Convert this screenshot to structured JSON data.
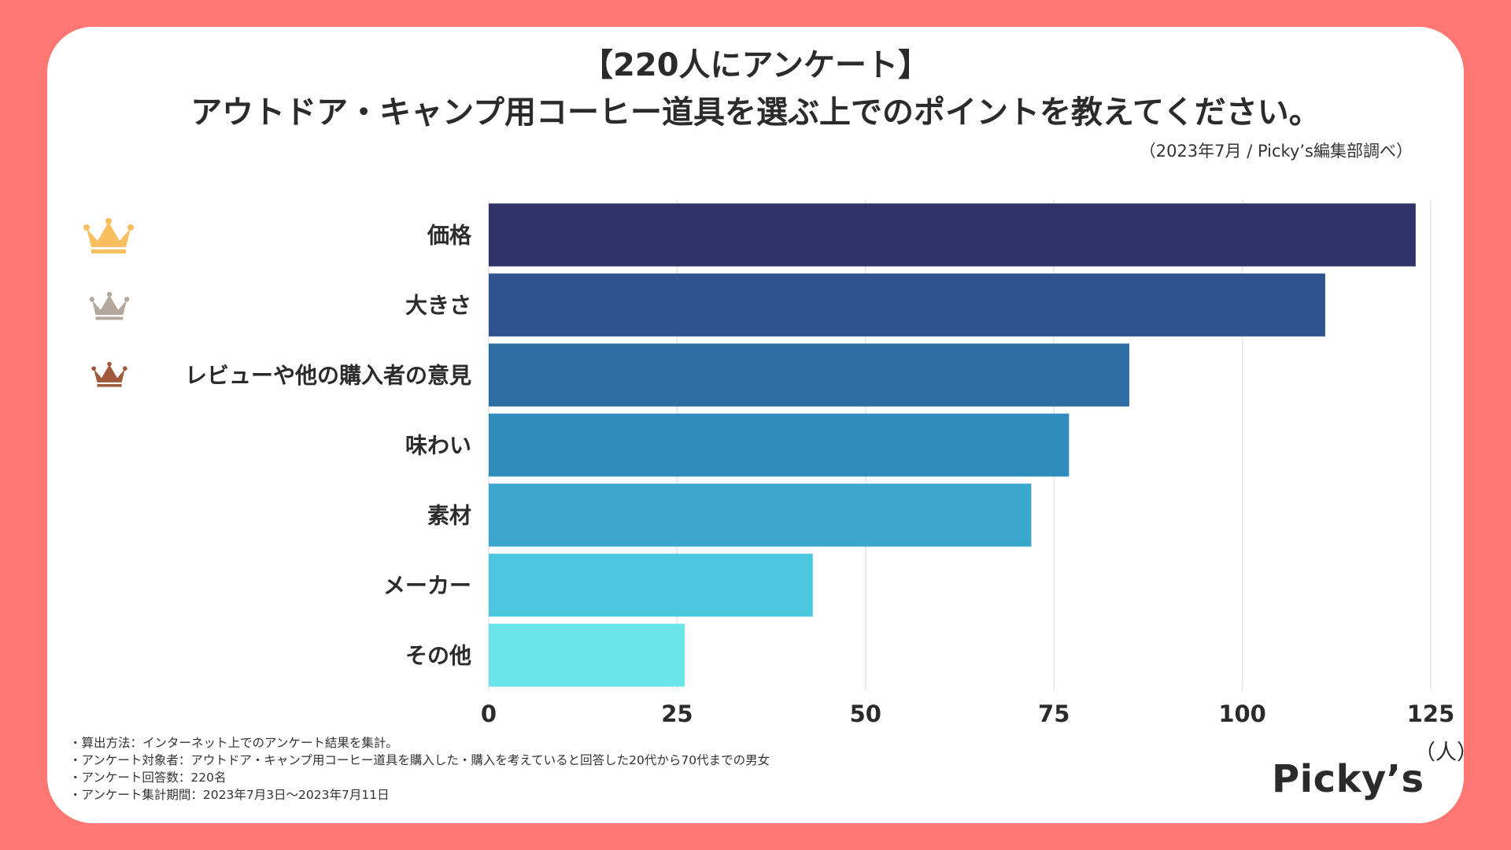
{
  "header": {
    "title_line1": "【220人にアンケート】",
    "title_line2": "アウトドア・キャンプ用コーヒー道具を選ぶ上でのポイントを教えてください。",
    "source": "（2023年7月 / Picky’s編集部調べ）"
  },
  "chart_data": {
    "type": "bar",
    "orientation": "horizontal",
    "categories": [
      "価格",
      "大きさ",
      "レビューや他の購入者の意見",
      "味わい",
      "素材",
      "メーカー",
      "その他"
    ],
    "values": [
      123,
      111,
      85,
      77,
      72,
      43,
      26
    ],
    "bar_colors": [
      "#2f336a",
      "#31538d",
      "#2e6da4",
      "#2e8bbb",
      "#3aa8cc",
      "#4bc7dd",
      "#6be4e8"
    ],
    "xlim": [
      0,
      125
    ],
    "xticks": [
      0,
      25,
      50,
      75,
      100,
      125
    ],
    "xlabel": "（人）",
    "grid": true,
    "rank_icons": [
      {
        "name": "gold-crown-icon",
        "color": "#f9be5d"
      },
      {
        "name": "silver-crown-icon",
        "color": "#b3a89c"
      },
      {
        "name": "bronze-crown-icon",
        "color": "#a0593a"
      }
    ]
  },
  "notes": [
    "・算出方法：インターネット上でのアンケート結果を集計。",
    "・アンケート対象者：アウトドア・キャンプ用コーヒー道具を購入した・購入を考えていると回答した20代から70代までの男女",
    "・アンケート回答数：220名",
    "・アンケート集計期間：2023年7月3日〜2023年7月11日"
  ],
  "brand": {
    "logo_text": "Picky’s"
  },
  "colors": {
    "background": "#ff7672",
    "card": "#ffffff",
    "grid": "#e6e6e6",
    "text": "#2b2b2b"
  }
}
